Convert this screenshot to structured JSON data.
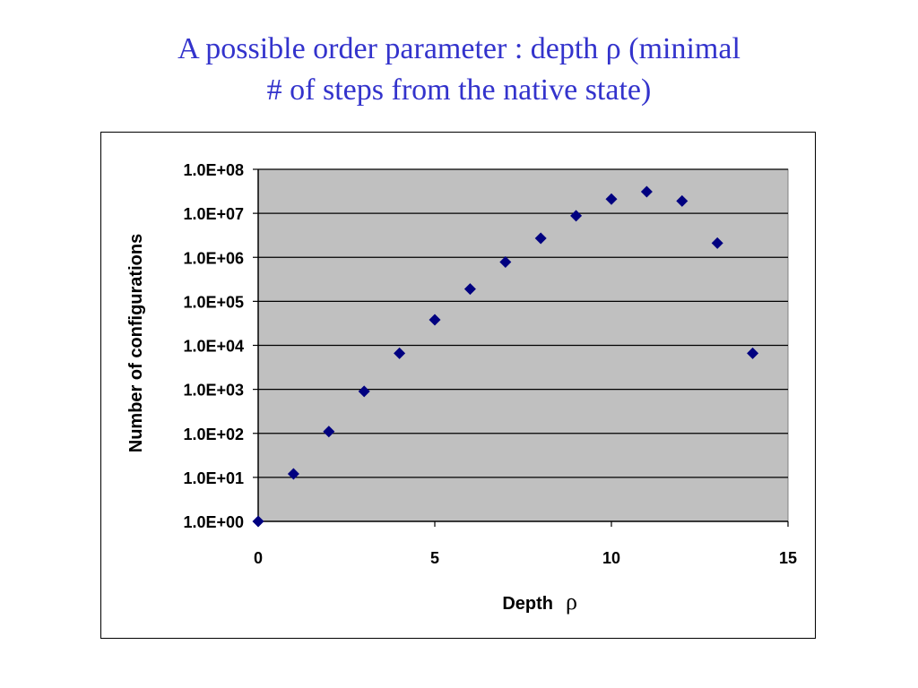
{
  "title": {
    "line1": "A possible order parameter : depth ρ (minimal",
    "line2": "# of steps from the native state)"
  },
  "colors": {
    "title": "#3333cc",
    "plot_background": "#c0c0c0",
    "marker": "#000080",
    "gridline": "#000000"
  },
  "chart_data": {
    "type": "scatter",
    "title": "",
    "xlabel": "Depth",
    "xlabel_symbol": "ρ",
    "ylabel": "Number of configurations",
    "x_scale": "linear",
    "y_scale": "log",
    "xlim": [
      0,
      15
    ],
    "ylim": [
      1,
      100000000
    ],
    "x_ticks": [
      0,
      5,
      10,
      15
    ],
    "x_tick_labels": [
      "0",
      "5",
      "10",
      "15"
    ],
    "y_ticks": [
      1,
      10,
      100,
      1000,
      10000,
      100000,
      1000000,
      10000000,
      100000000
    ],
    "y_tick_labels": [
      "1.0E+00",
      "1.0E+01",
      "1.0E+02",
      "1.0E+03",
      "1.0E+04",
      "1.0E+05",
      "1.0E+06",
      "1.0E+07",
      "1.0E+08"
    ],
    "grid": "horizontal major gridlines",
    "legend": "none",
    "marker": "diamond",
    "series": [
      {
        "x": [
          0,
          1,
          2,
          3,
          4,
          5,
          6,
          7,
          8,
          9,
          10,
          11,
          12,
          13,
          14
        ],
        "y": [
          1,
          12,
          110,
          900,
          6600,
          38000,
          190000,
          780000,
          2700000,
          8800000,
          21000000,
          31000000,
          19000000,
          2100000,
          6600
        ]
      }
    ]
  }
}
